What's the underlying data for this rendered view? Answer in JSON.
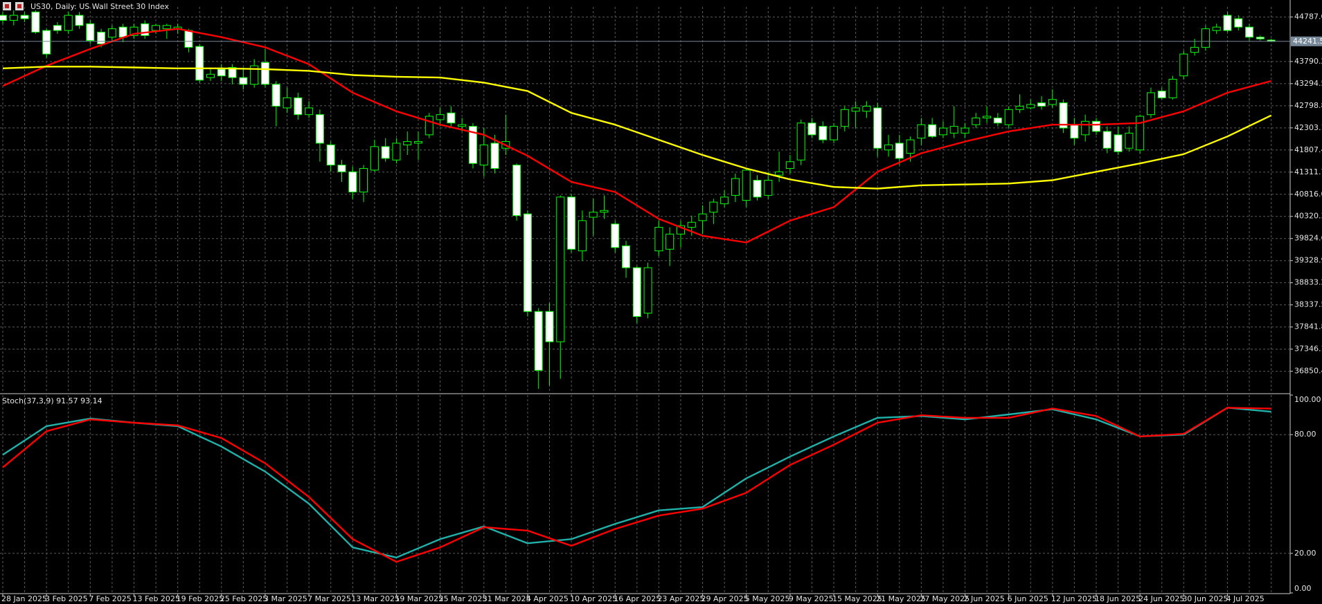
{
  "chart_data": [
    {
      "type": "candlestick",
      "title": "US30, Daily: US Wall Street 30 Index",
      "categories": [
        "28 Jan 2025",
        null,
        null,
        null,
        "3 Feb 2025",
        null,
        null,
        null,
        "7 Feb 2025",
        null,
        null,
        null,
        "13 Feb 2025",
        null,
        null,
        null,
        "19 Feb 2025",
        null,
        null,
        null,
        "25 Feb 2025",
        null,
        null,
        null,
        "3 Mar 2025",
        null,
        null,
        null,
        "7 Mar 2025",
        null,
        null,
        null,
        "13 Mar 2025",
        null,
        null,
        null,
        "19 Mar 2025",
        null,
        null,
        null,
        "25 Mar 2025",
        null,
        null,
        null,
        "31 Mar 2025",
        null,
        null,
        null,
        "4 Apr 2025",
        null,
        null,
        null,
        "10 Apr 2025",
        null,
        null,
        null,
        "16 Apr 2025",
        null,
        null,
        null,
        "23 Apr 2025",
        null,
        null,
        null,
        "29 Apr 2025",
        null,
        null,
        null,
        "5 May 2025",
        null,
        null,
        null,
        "9 May 2025",
        null,
        null,
        null,
        "15 May 2025",
        null,
        null,
        null,
        "21 May 2025",
        null,
        null,
        null,
        "27 May 2025",
        null,
        null,
        null,
        "2 Jun 2025",
        null,
        null,
        null,
        "6 Jun 2025",
        null,
        null,
        null,
        "12 Jun 2025",
        null,
        null,
        null,
        "18 Jun 2025",
        null,
        null,
        null,
        "24 Jun 2025",
        null,
        null,
        null,
        "30 Jun 2025",
        null,
        null,
        null,
        "4 Jul 2025",
        null,
        null,
        null,
        null
      ],
      "open": [
        44825,
        44712,
        44825,
        44900,
        44485,
        44598,
        44485,
        44825,
        44636,
        44448,
        44335,
        44561,
        44372,
        44636,
        44485,
        44523,
        44523,
        44485,
        44127,
        43430,
        43618,
        43656,
        43430,
        43279,
        43769,
        43279,
        42751,
        42977,
        42600,
        42600,
        41922,
        41470,
        41319,
        40866,
        41356,
        41884,
        41583,
        41922,
        41960,
        42148,
        42487,
        42638,
        42337,
        42337,
        41470,
        41960,
        41847,
        41470,
        40376,
        38189,
        38189,
        37511,
        40753,
        39547,
        40301,
        40414,
        40150,
        39660,
        39170,
        38152,
        39547,
        39584,
        39924,
        40075,
        40225,
        40414,
        40602,
        40791,
        40678,
        41130,
        40791,
        41243,
        41394,
        41583,
        42412,
        42337,
        42035,
        42337,
        42676,
        42676,
        42751,
        41809,
        41960,
        41734,
        42073,
        42374,
        42148,
        42186,
        42186,
        42374,
        42525,
        42525,
        42374,
        42714,
        42751,
        42864,
        42827,
        42864,
        42374,
        42148,
        42450,
        42224,
        42148,
        41847,
        41809,
        42600,
        43128,
        42977,
        43468,
        43995,
        44108,
        44485,
        44825,
        44749,
        44561,
        44335,
        44270
      ],
      "high": [
        44900,
        44938,
        44900,
        44938,
        44523,
        44674,
        44900,
        44900,
        44712,
        44523,
        44598,
        44636,
        44636,
        44712,
        44636,
        44636,
        44636,
        44523,
        44184,
        43656,
        43731,
        43731,
        43656,
        43845,
        44071,
        43354,
        43204,
        43091,
        42902,
        42714,
        41997,
        41583,
        41432,
        41470,
        42035,
        42073,
        42073,
        42224,
        42224,
        42638,
        42751,
        42789,
        42525,
        42412,
        42299,
        42148,
        42600,
        41507,
        40452,
        38265,
        38378,
        40791,
        40829,
        40452,
        40715,
        40791,
        40225,
        39773,
        39207,
        39283,
        40225,
        40075,
        40225,
        40338,
        40565,
        40715,
        40904,
        41281,
        41394,
        41243,
        41319,
        41771,
        41696,
        42487,
        42525,
        42450,
        42412,
        42789,
        42902,
        42902,
        42864,
        42148,
        42148,
        42111,
        42525,
        42525,
        42450,
        42789,
        42412,
        42638,
        42789,
        42638,
        42789,
        43053,
        42940,
        43015,
        43166,
        42940,
        42525,
        42600,
        42525,
        42337,
        42337,
        42337,
        42600,
        43204,
        43204,
        43468,
        44033,
        44297,
        44598,
        44636,
        44900,
        44825,
        44636,
        44372,
        44300
      ],
      "low": [
        44636,
        44598,
        44674,
        44410,
        43882,
        44410,
        44410,
        44523,
        44184,
        44108,
        44222,
        44222,
        44297,
        44297,
        44410,
        44297,
        44410,
        43995,
        43317,
        43354,
        43354,
        43279,
        43166,
        43204,
        43204,
        42337,
        42638,
        42487,
        42525,
        41545,
        41319,
        41093,
        40715,
        40640,
        41319,
        41545,
        41507,
        41696,
        41583,
        42073,
        42337,
        42337,
        42224,
        41394,
        41206,
        41281,
        41696,
        40225,
        38076,
        36455,
        36531,
        36682,
        39509,
        39320,
        39886,
        40263,
        39509,
        38944,
        37926,
        38039,
        39434,
        39207,
        39622,
        39886,
        39924,
        40150,
        40527,
        40640,
        40527,
        40678,
        40715,
        41093,
        41281,
        41470,
        42073,
        41960,
        41960,
        42224,
        42299,
        42525,
        41658,
        41658,
        41470,
        41545,
        41922,
        42073,
        42073,
        42073,
        42073,
        42299,
        42412,
        42337,
        42299,
        42638,
        42714,
        42714,
        42751,
        42186,
        41922,
        41997,
        42148,
        41734,
        41696,
        41771,
        41734,
        42525,
        42940,
        42940,
        43392,
        43920,
        44033,
        44410,
        44448,
        44485,
        44259,
        44259,
        44230
      ],
      "close": [
        44712,
        44825,
        44749,
        44448,
        43958,
        44485,
        44825,
        44598,
        44259,
        44184,
        44523,
        44335,
        44561,
        44372,
        44598,
        44598,
        44561,
        44108,
        43373,
        43505,
        43468,
        43430,
        43279,
        43694,
        43279,
        42789,
        42977,
        42600,
        42751,
        41960,
        41470,
        41319,
        40866,
        41394,
        41884,
        41620,
        41960,
        41997,
        41997,
        42563,
        42600,
        42412,
        42374,
        41507,
        41922,
        41394,
        41997,
        40338,
        38189,
        36870,
        37511,
        40753,
        39584,
        40225,
        40414,
        40452,
        39622,
        39170,
        38076,
        39170,
        40075,
        39924,
        40112,
        40188,
        40376,
        40640,
        40753,
        41168,
        41356,
        40753,
        41130,
        41319,
        41545,
        42412,
        42148,
        42035,
        42337,
        42714,
        42751,
        42789,
        41847,
        41922,
        41620,
        42035,
        42374,
        42111,
        42299,
        42337,
        42299,
        42525,
        42563,
        42412,
        42714,
        42789,
        42827,
        42789,
        42940,
        42299,
        42073,
        42450,
        42224,
        41847,
        41771,
        42186,
        42563,
        43091,
        42977,
        43392,
        43958,
        44108,
        44523,
        44561,
        44485,
        44561,
        44335,
        44297,
        44241.5
      ],
      "colors": {
        "up_body": "#000000",
        "down_body": "#ffffff",
        "outline": "#00ff00"
      },
      "overlays": [
        {
          "color": "#ff0000",
          "x": [
            0,
            4,
            8,
            12,
            16,
            20,
            24,
            28,
            32,
            36,
            40,
            44,
            48,
            52,
            56,
            60,
            64,
            68,
            72,
            76,
            80,
            84,
            88,
            92,
            96,
            100,
            104,
            108,
            112,
            116
          ],
          "values": [
            43241,
            43694,
            44071,
            44410,
            44523,
            44335,
            44108,
            43731,
            43091,
            42676,
            42374,
            42148,
            41677,
            41093,
            40866,
            40263,
            39886,
            39735,
            40225,
            40527,
            41319,
            41734,
            41997,
            42224,
            42374,
            42374,
            42412,
            42676,
            43091,
            43354
          ]
        },
        {
          "color": "#ffff00",
          "x": [
            0,
            4,
            8,
            12,
            16,
            20,
            24,
            28,
            32,
            36,
            40,
            44,
            48,
            52,
            56,
            60,
            64,
            68,
            72,
            76,
            80,
            84,
            88,
            92,
            96,
            100,
            104,
            108,
            112,
            116
          ],
          "values": [
            43637,
            43675,
            43675,
            43656,
            43637,
            43637,
            43618,
            43581,
            43486,
            43449,
            43430,
            43317,
            43128,
            42638,
            42374,
            42035,
            41696,
            41394,
            41149,
            40979,
            40942,
            41017,
            41036,
            41055,
            41130,
            41319,
            41507,
            41715,
            42111,
            42582
          ]
        }
      ],
      "last_price": 44241.5,
      "ylim": [
        36379,
        45013
      ],
      "yticks": [
        {
          "value": 44787,
          "label": "44787.0"
        },
        43790.2,
        43294.5,
        42798.8,
        42303.1,
        41807.4,
        41311.7,
        {
          "value": 40816,
          "label": "40816.0"
        },
        40320.3,
        39824.6,
        39328.9,
        38833.2,
        38337.5,
        37841.8,
        37346.1,
        36850.4
      ],
      "grid": true
    },
    {
      "type": "line",
      "label": "Stoch(37,3,9) 91.57 93.14",
      "x": [
        0,
        4,
        8,
        12,
        16,
        20,
        24,
        28,
        32,
        36,
        40,
        44,
        48,
        52,
        56,
        60,
        64,
        68,
        72,
        76,
        80,
        84,
        88,
        92,
        96,
        100,
        104,
        108,
        112,
        116
      ],
      "series": [
        {
          "color": "#20b2aa",
          "values": [
            69.8,
            84.3,
            88.1,
            86.0,
            84.3,
            74.0,
            61.3,
            45.1,
            23.0,
            17.9,
            27.2,
            33.6,
            25.1,
            27.2,
            34.9,
            41.7,
            43.4,
            57.9,
            68.9,
            79.1,
            88.5,
            89.4,
            87.7,
            90.2,
            92.8,
            87.7,
            79.1,
            80.0,
            93.6,
            91.57
          ]
        },
        {
          "color": "#ff0000",
          "values": [
            63.4,
            81.7,
            87.7,
            86.0,
            84.7,
            78.3,
            65.5,
            48.5,
            27.2,
            15.7,
            23.0,
            33.2,
            31.5,
            23.8,
            32.3,
            39.1,
            42.6,
            50.6,
            64.7,
            74.9,
            86.0,
            89.8,
            88.5,
            88.5,
            93.2,
            89.4,
            79.1,
            80.4,
            93.6,
            93.14
          ]
        }
      ],
      "ylim": [
        0,
        100
      ],
      "yticks": [
        {
          "value": 0,
          "label": "0.00"
        },
        {
          "value": 20,
          "label": "20.00"
        },
        {
          "value": 80,
          "label": "80.00"
        },
        {
          "value": 100,
          "label": "100.00"
        }
      ],
      "grid": true
    }
  ]
}
